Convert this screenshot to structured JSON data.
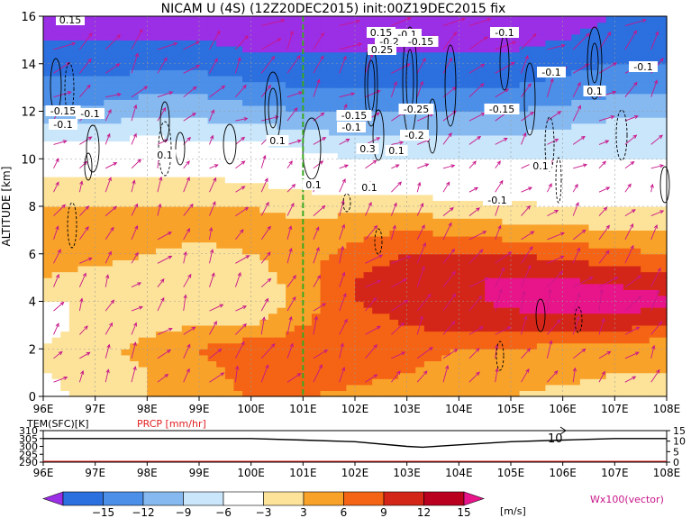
{
  "title": "NICAM U (4S) (12Z20DEC2015) init:00Z19DEC2015 fix",
  "main_panel": {
    "ylabel": "ALTITUDE [km]",
    "y_ticks": [
      "0",
      "2",
      "4",
      "6",
      "8",
      "10",
      "12",
      "14",
      "16"
    ],
    "x_ticks": [
      "96E",
      "97E",
      "98E",
      "99E",
      "100E",
      "101E",
      "102E",
      "103E",
      "104E",
      "105E",
      "106E",
      "107E",
      "108E"
    ]
  },
  "sub_panel": {
    "label_left": "TEM(SFC)[K]",
    "label_right": "PRCP [mm/hr]",
    "left_ticks": [
      "310",
      "305",
      "300",
      "295",
      "290"
    ],
    "right_ticks": [
      "15",
      "10",
      "5",
      "0"
    ],
    "annotation": "10",
    "x_ticks": [
      "96E",
      "97E",
      "98E",
      "99E",
      "100E",
      "101E",
      "102E",
      "103E",
      "104E",
      "105E",
      "106E",
      "107E",
      "108E"
    ]
  },
  "colorbar": {
    "tick_labels": [
      "−15",
      "−12",
      "−9",
      "−6",
      "−3",
      "3",
      "6",
      "9",
      "12",
      "15"
    ],
    "unit": "[m/s]",
    "colors": [
      "#9b2fe6",
      "#2c6fde",
      "#4b8fe8",
      "#86b9f0",
      "#c9e6fa",
      "#ffffff",
      "#fde39a",
      "#f9a22a",
      "#f46414",
      "#d42618",
      "#b9001e",
      "#e8158a"
    ]
  },
  "vector_label": "Wx100(vector)",
  "contour_labels": [
    {
      "text": "0.15"
    },
    {
      "text": "-0.15"
    },
    {
      "text": "-0.1"
    },
    {
      "text": "-0.1"
    },
    {
      "text": "0.15"
    },
    {
      "text": "-0.1"
    },
    {
      "text": "-0.2"
    },
    {
      "text": "-0.15"
    },
    {
      "text": "0.25"
    },
    {
      "text": "-0.1"
    },
    {
      "text": "-0.1"
    },
    {
      "text": "-0.1"
    },
    {
      "text": "0.1"
    },
    {
      "text": "-0.15"
    },
    {
      "text": "-0.1"
    },
    {
      "text": "-0.25"
    },
    {
      "text": "0.3"
    },
    {
      "text": "-0.2"
    },
    {
      "text": "0.1"
    },
    {
      "text": "-0.15"
    },
    {
      "text": "0.1"
    },
    {
      "text": "0.1"
    },
    {
      "text": "0.1"
    },
    {
      "text": "-0.1"
    },
    {
      "text": "0.1"
    },
    {
      "text": "0.1"
    }
  ],
  "chart_data": {
    "type": "heatmap",
    "title": "NICAM U (4S) (12Z20DEC2015) init:00Z19DEC2015 fix",
    "x_axis": {
      "label": "",
      "range_deg_east": [
        96,
        108
      ]
    },
    "y_axis": {
      "label": "ALTITUDE [km]",
      "range": [
        0,
        16
      ]
    },
    "field": "zonal wind U [m/s]",
    "contour_levels_mps": [
      -15,
      -12,
      -9,
      -6,
      -3,
      3,
      6,
      9,
      12,
      15
    ],
    "altitude_km": [
      0,
      1,
      2,
      3,
      4,
      5,
      6,
      7,
      8,
      9,
      10,
      11,
      12,
      13,
      14,
      15,
      16
    ],
    "longitude": [
      96,
      97,
      98,
      99,
      100,
      101,
      102,
      103,
      104,
      105,
      106,
      107,
      108
    ],
    "u_mps": [
      [
        2,
        4,
        6,
        8,
        9,
        9,
        8,
        7,
        6,
        6,
        5,
        5,
        5
      ],
      [
        3,
        4,
        6,
        8,
        10,
        11,
        10,
        9,
        8,
        7,
        7,
        6,
        6
      ],
      [
        3,
        5,
        7,
        9,
        11,
        11,
        11,
        10,
        9,
        9,
        8,
        7,
        7
      ],
      [
        2,
        4,
        5,
        6,
        6,
        9,
        11,
        12,
        13,
        13,
        13,
        13,
        12
      ],
      [
        3,
        3,
        4,
        4,
        3,
        7,
        12,
        13,
        14,
        16,
        17,
        17,
        16
      ],
      [
        6,
        5,
        4,
        3,
        4,
        8,
        12,
        14,
        15,
        15,
        15,
        14,
        13
      ],
      [
        7,
        7,
        6,
        5,
        6,
        8,
        10,
        12,
        12,
        12,
        11,
        10,
        9
      ],
      [
        8,
        8,
        7,
        7,
        7,
        7,
        8,
        9,
        8,
        7,
        7,
        6,
        6
      ],
      [
        6,
        6,
        6,
        6,
        6,
        5,
        5,
        5,
        4,
        4,
        3,
        3,
        3
      ],
      [
        4,
        4,
        4,
        4,
        3,
        2,
        1,
        1,
        0,
        0,
        0,
        -1,
        -1
      ],
      [
        0,
        -1,
        -1,
        0,
        0,
        -2,
        -3,
        -3,
        -3,
        -3,
        -3,
        -3,
        -3
      ],
      [
        -4,
        -4,
        -3,
        -4,
        -4,
        -5,
        -6,
        -6,
        -6,
        -6,
        -5,
        -4,
        -4
      ],
      [
        -8,
        -8,
        -7,
        -7,
        -8,
        -9,
        -9,
        -9,
        -9,
        -9,
        -8,
        -7,
        -7
      ],
      [
        -11,
        -11,
        -10,
        -10,
        -11,
        -12,
        -12,
        -12,
        -12,
        -12,
        -11,
        -10,
        -10
      ],
      [
        -13,
        -13,
        -13,
        -13,
        -14,
        -14,
        -14,
        -14,
        -14,
        -14,
        -13,
        -12,
        -12
      ],
      [
        -15,
        -15,
        -15,
        -15,
        -16,
        -16,
        -16,
        -16,
        -16,
        -16,
        -15,
        -14,
        -14
      ],
      [
        -16,
        -16,
        -16,
        -16,
        -17,
        -17,
        -17,
        -17,
        -17,
        -17,
        -16,
        -15,
        -15
      ]
    ],
    "marker_longitude": 101,
    "surface_temperature_K": {
      "longitude": [
        96,
        97,
        98,
        99,
        100,
        101,
        102,
        103,
        103.3,
        104,
        105,
        106,
        107,
        108
      ],
      "values": [
        305,
        305,
        305,
        305,
        305,
        304,
        303,
        300,
        299.5,
        301,
        303,
        304,
        305,
        305
      ]
    },
    "surface_temperature_range_K": [
      290,
      310
    ],
    "precipitation_range_mm_per_hr": [
      0,
      15
    ]
  }
}
